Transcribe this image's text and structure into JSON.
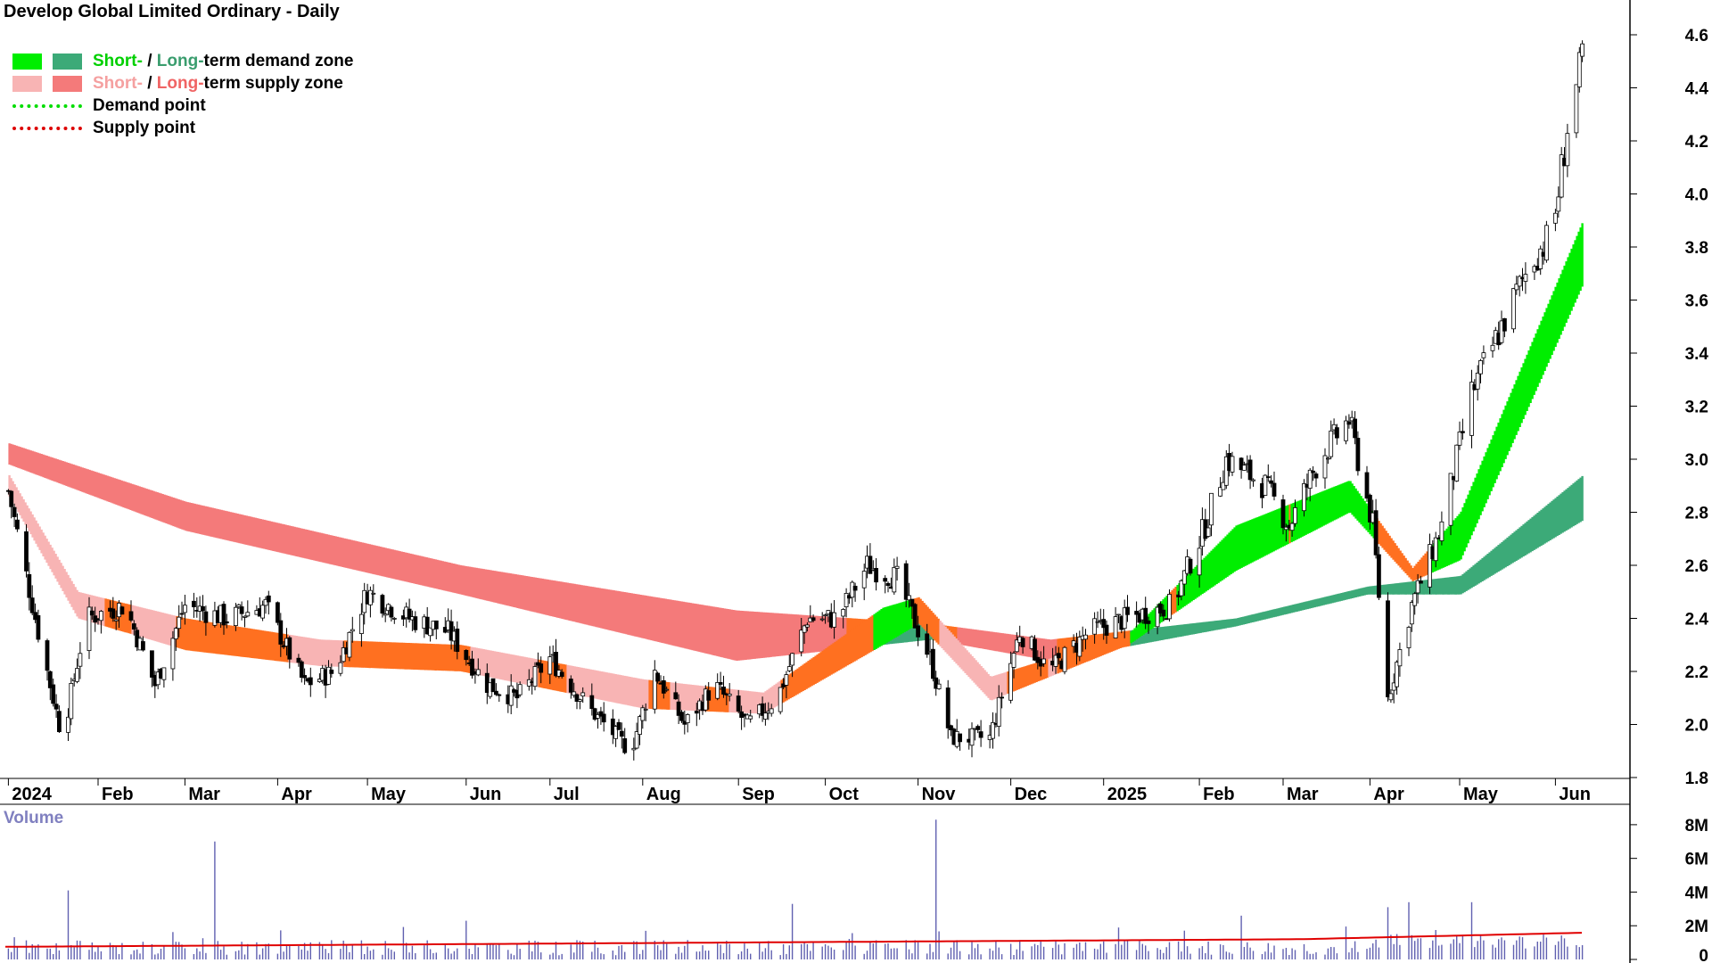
{
  "title": "Develop Global Limited Ordinary - Daily",
  "legend": {
    "demand_zone": {
      "short": "Short-",
      "sep": " / ",
      "long": "Long-",
      "rest": "term demand zone"
    },
    "supply_zone": {
      "short": "Short-",
      "sep": " / ",
      "long": "Long-",
      "rest": "term supply zone"
    },
    "demand_point": "Demand point",
    "supply_point": "Supply point"
  },
  "volume_label": "Volume",
  "colors": {
    "short_demand": "#00ee00",
    "long_demand": "#3caa78",
    "short_supply": "#f8b4b4",
    "long_supply": "#f47a7a",
    "transition": "#ff7020",
    "candle": "#000000",
    "volume_bar": "#6060b0",
    "volume_avg": "#e00000"
  },
  "chart_data": {
    "type": "candlestick",
    "title": "Develop Global Limited Ordinary - Daily",
    "price_axis": {
      "ticks": [
        "1.8",
        "2.0",
        "2.2",
        "2.4",
        "2.6",
        "2.8",
        "3.0",
        "3.2",
        "3.4",
        "3.6",
        "3.8",
        "4.0",
        "4.2",
        "4.4",
        "4.6"
      ],
      "range": [
        1.8,
        4.7
      ]
    },
    "volume_axis": {
      "ticks": [
        "0",
        "2M",
        "4M",
        "6M",
        "8M"
      ],
      "range": [
        0,
        9
      ]
    },
    "x_labels": [
      "2024",
      "Feb",
      "Mar",
      "Apr",
      "May",
      "Jun",
      "Jul",
      "Aug",
      "Sep",
      "Oct",
      "Nov",
      "Dec",
      "2025",
      "Feb",
      "Mar",
      "Apr",
      "May",
      "Jun"
    ],
    "approx_close_series": [
      {
        "date": "2024-01-02",
        "close": 2.88
      },
      {
        "date": "2024-01-12",
        "close": 2.35
      },
      {
        "date": "2024-01-20",
        "close": 1.95
      },
      {
        "date": "2024-01-28",
        "close": 2.4
      },
      {
        "date": "2024-02-10",
        "close": 2.45
      },
      {
        "date": "2024-02-20",
        "close": 2.15
      },
      {
        "date": "2024-03-01",
        "close": 2.45
      },
      {
        "date": "2024-03-15",
        "close": 2.4
      },
      {
        "date": "2024-03-28",
        "close": 2.45
      },
      {
        "date": "2024-04-10",
        "close": 2.15
      },
      {
        "date": "2024-04-20",
        "close": 2.2
      },
      {
        "date": "2024-05-01",
        "close": 2.5
      },
      {
        "date": "2024-05-15",
        "close": 2.4
      },
      {
        "date": "2024-05-28",
        "close": 2.35
      },
      {
        "date": "2024-06-10",
        "close": 2.15
      },
      {
        "date": "2024-06-20",
        "close": 2.1
      },
      {
        "date": "2024-07-01",
        "close": 2.25
      },
      {
        "date": "2024-07-15",
        "close": 2.05
      },
      {
        "date": "2024-07-28",
        "close": 1.9
      },
      {
        "date": "2024-08-05",
        "close": 2.2
      },
      {
        "date": "2024-08-15",
        "close": 2.0
      },
      {
        "date": "2024-08-25",
        "close": 2.15
      },
      {
        "date": "2024-09-05",
        "close": 2.0
      },
      {
        "date": "2024-09-15",
        "close": 2.1
      },
      {
        "date": "2024-09-25",
        "close": 2.4
      },
      {
        "date": "2024-10-05",
        "close": 2.4
      },
      {
        "date": "2024-10-15",
        "close": 2.6
      },
      {
        "date": "2024-10-25",
        "close": 2.55
      },
      {
        "date": "2024-11-05",
        "close": 2.25
      },
      {
        "date": "2024-11-12",
        "close": 1.95
      },
      {
        "date": "2024-11-25",
        "close": 1.95
      },
      {
        "date": "2024-12-05",
        "close": 2.35
      },
      {
        "date": "2024-12-15",
        "close": 2.2
      },
      {
        "date": "2024-12-28",
        "close": 2.35
      },
      {
        "date": "2025-01-10",
        "close": 2.4
      },
      {
        "date": "2025-01-25",
        "close": 2.45
      },
      {
        "date": "2025-02-05",
        "close": 2.75
      },
      {
        "date": "2025-02-12",
        "close": 3.0
      },
      {
        "date": "2025-02-25",
        "close": 2.9
      },
      {
        "date": "2025-03-05",
        "close": 2.75
      },
      {
        "date": "2025-03-15",
        "close": 3.0
      },
      {
        "date": "2025-03-25",
        "close": 3.15
      },
      {
        "date": "2025-04-02",
        "close": 2.75
      },
      {
        "date": "2025-04-07",
        "close": 2.1
      },
      {
        "date": "2025-04-15",
        "close": 2.45
      },
      {
        "date": "2025-04-25",
        "close": 2.75
      },
      {
        "date": "2025-05-05",
        "close": 3.25
      },
      {
        "date": "2025-05-15",
        "close": 3.5
      },
      {
        "date": "2025-05-25",
        "close": 3.75
      },
      {
        "date": "2025-06-01",
        "close": 3.85
      },
      {
        "date": "2025-06-06",
        "close": 4.25
      },
      {
        "date": "2025-06-11",
        "close": 4.5
      }
    ],
    "long_term_zone_top": [
      {
        "date": "2024-01-02",
        "v": 3.06
      },
      {
        "date": "2024-03-01",
        "v": 2.84
      },
      {
        "date": "2024-06-01",
        "v": 2.6
      },
      {
        "date": "2024-09-01",
        "v": 2.43
      },
      {
        "date": "2024-11-05",
        "v": 2.38
      },
      {
        "date": "2024-12-15",
        "v": 2.32
      },
      {
        "date": "2025-02-15",
        "v": 2.4
      },
      {
        "date": "2025-03-31",
        "v": 2.52
      },
      {
        "date": "2025-05-01",
        "v": 2.56
      },
      {
        "date": "2025-06-11",
        "v": 2.94
      }
    ],
    "long_term_zone_bottom": [
      {
        "date": "2024-01-02",
        "v": 2.98
      },
      {
        "date": "2024-03-01",
        "v": 2.73
      },
      {
        "date": "2024-06-01",
        "v": 2.49
      },
      {
        "date": "2024-09-01",
        "v": 2.24
      },
      {
        "date": "2024-11-05",
        "v": 2.32
      },
      {
        "date": "2024-12-15",
        "v": 2.24
      },
      {
        "date": "2025-02-15",
        "v": 2.37
      },
      {
        "date": "2025-03-31",
        "v": 2.49
      },
      {
        "date": "2025-05-01",
        "v": 2.49
      },
      {
        "date": "2025-06-11",
        "v": 2.77
      }
    ],
    "short_term_zone_top": [
      {
        "date": "2024-01-02",
        "v": 2.94
      },
      {
        "date": "2024-01-25",
        "v": 2.5
      },
      {
        "date": "2024-03-01",
        "v": 2.4
      },
      {
        "date": "2024-04-15",
        "v": 2.32
      },
      {
        "date": "2024-06-01",
        "v": 2.3
      },
      {
        "date": "2024-08-01",
        "v": 2.17
      },
      {
        "date": "2024-09-10",
        "v": 2.12
      },
      {
        "date": "2024-10-20",
        "v": 2.44
      },
      {
        "date": "2024-11-01",
        "v": 2.48
      },
      {
        "date": "2024-11-25",
        "v": 2.18
      },
      {
        "date": "2025-01-10",
        "v": 2.34
      },
      {
        "date": "2025-02-15",
        "v": 2.75
      },
      {
        "date": "2025-03-25",
        "v": 2.92
      },
      {
        "date": "2025-04-15",
        "v": 2.59
      },
      {
        "date": "2025-05-01",
        "v": 2.8
      },
      {
        "date": "2025-06-11",
        "v": 3.9
      }
    ],
    "short_term_zone_bottom": [
      {
        "date": "2024-01-02",
        "v": 2.86
      },
      {
        "date": "2024-01-25",
        "v": 2.4
      },
      {
        "date": "2024-03-01",
        "v": 2.28
      },
      {
        "date": "2024-04-15",
        "v": 2.22
      },
      {
        "date": "2024-06-01",
        "v": 2.2
      },
      {
        "date": "2024-08-01",
        "v": 2.06
      },
      {
        "date": "2024-09-10",
        "v": 2.04
      },
      {
        "date": "2024-10-20",
        "v": 2.3
      },
      {
        "date": "2024-11-01",
        "v": 2.38
      },
      {
        "date": "2024-11-25",
        "v": 2.09
      },
      {
        "date": "2025-01-10",
        "v": 2.3
      },
      {
        "date": "2025-02-15",
        "v": 2.58
      },
      {
        "date": "2025-03-25",
        "v": 2.8
      },
      {
        "date": "2025-04-15",
        "v": 2.54
      },
      {
        "date": "2025-05-01",
        "v": 2.62
      },
      {
        "date": "2025-06-11",
        "v": 3.66
      }
    ],
    "volume_avg": 1.0,
    "volume_spikes": [
      {
        "date": "2024-01-22",
        "v": 4.1
      },
      {
        "date": "2024-03-11",
        "v": 7.0
      },
      {
        "date": "2024-06-03",
        "v": 2.3
      },
      {
        "date": "2024-09-20",
        "v": 3.3
      },
      {
        "date": "2024-11-07",
        "v": 8.3
      },
      {
        "date": "2025-02-17",
        "v": 2.6
      },
      {
        "date": "2025-04-07",
        "v": 3.1
      },
      {
        "date": "2025-04-14",
        "v": 3.4
      },
      {
        "date": "2025-05-05",
        "v": 3.4
      }
    ]
  }
}
